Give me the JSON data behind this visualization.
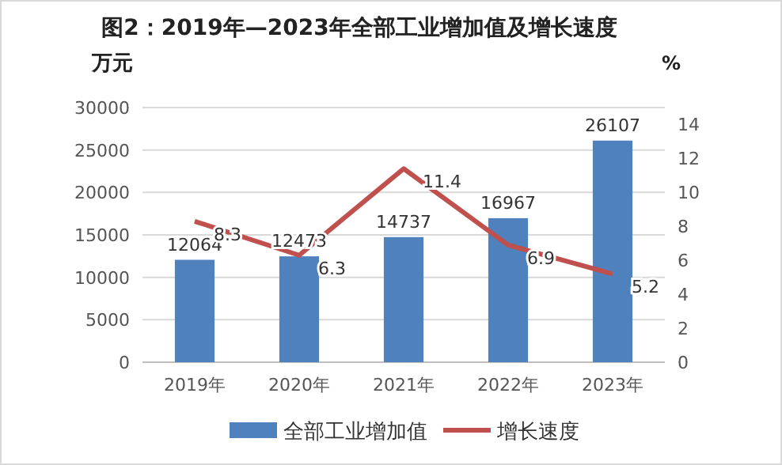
{
  "chart_data": {
    "type": "bar",
    "title": "图2：2019年—2023年全部工业增加值及增长速度",
    "ylabel": "万元",
    "y2label": "%",
    "categories": [
      "2019年",
      "2020年",
      "2021年",
      "2022年",
      "2023年"
    ],
    "series": [
      {
        "name": "全部工业增加值",
        "color": "#4f81bd",
        "values": [
          12064,
          12473,
          14737,
          16967,
          26107
        ]
      },
      {
        "name": "增长速度",
        "type": "line",
        "axis": "y2",
        "color": "#c0504d",
        "values": [
          8.3,
          6.3,
          11.4,
          6.9,
          5.2
        ]
      }
    ],
    "ylim": [
      0,
      30000
    ],
    "yticks": [
      0,
      5000,
      10000,
      15000,
      20000,
      25000,
      30000
    ],
    "y2lim": [
      0,
      15
    ],
    "y2ticks": [
      0,
      2,
      4,
      6,
      8,
      10,
      12,
      14
    ],
    "grid": "y",
    "legend": "bottom",
    "data_labels": true,
    "marker": "none",
    "line_style": "solid"
  }
}
